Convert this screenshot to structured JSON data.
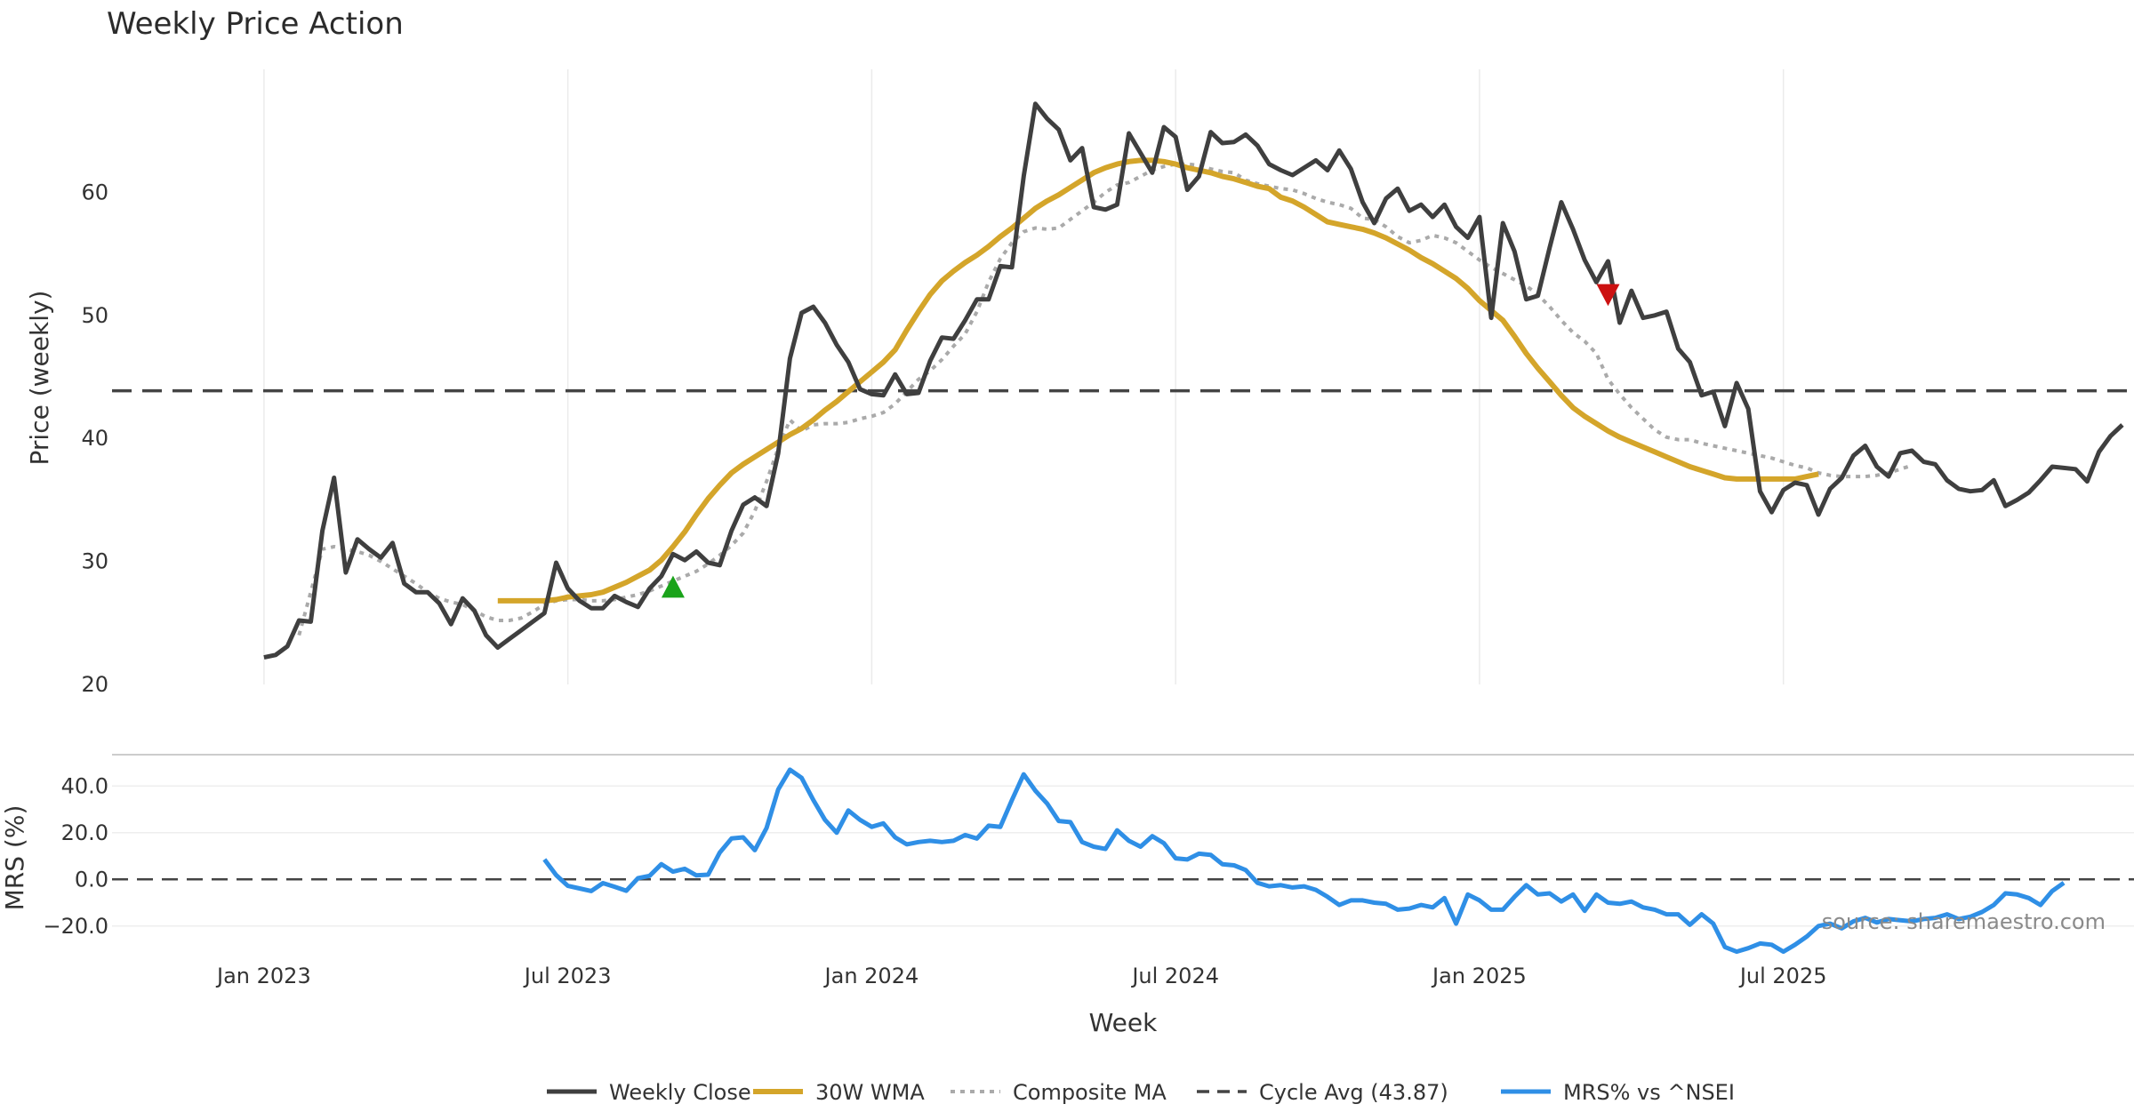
{
  "chart_data": {
    "type": "line",
    "title": "Weekly Price Action",
    "xlabel": "Week",
    "source": "source: sharemaestro.com",
    "colors": {
      "close": "#3f3f3f",
      "wma": "#d4a52a",
      "composite": "#aaaaaa",
      "cycle": "#444444",
      "mrs": "#2f8fe6",
      "buy_marker": "#1aa31a",
      "sell_marker": "#cc1111"
    },
    "x_range_weeks": [
      -13,
      160
    ],
    "price_panel": {
      "ylabel": "Price (weekly)",
      "ylim": [
        20,
        70
      ],
      "yticks": [
        20,
        30,
        40,
        50,
        60
      ],
      "cycle_avg": 43.87,
      "weekly_close": [
        22.2,
        22.4,
        23.1,
        25.2,
        25.1,
        32.5,
        36.8,
        29.1,
        31.8,
        31.0,
        30.3,
        31.5,
        28.2,
        27.5,
        27.5,
        26.6,
        24.9,
        27.0,
        26.0,
        24.0,
        23.0,
        23.7,
        24.4,
        25.1,
        25.8,
        29.9,
        27.8,
        26.8,
        26.2,
        26.2,
        27.2,
        26.7,
        26.3,
        27.8,
        28.8,
        30.6,
        30.1,
        30.8,
        29.9,
        29.7,
        32.5,
        34.6,
        35.2,
        34.5,
        38.8,
        46.5,
        50.2,
        50.7,
        49.4,
        47.6,
        46.2,
        44.0,
        43.6,
        43.5,
        45.2,
        43.6,
        43.7,
        46.3,
        48.2,
        48.1,
        49.6,
        51.3,
        51.3,
        54.0,
        53.9,
        61.3,
        67.2,
        66.0,
        65.1,
        62.6,
        63.6,
        58.8,
        58.6,
        59.0,
        64.8,
        63.2,
        61.6,
        65.3,
        64.5,
        60.2,
        61.3,
        64.9,
        64.0,
        64.1,
        64.7,
        63.8,
        62.3,
        61.8,
        61.4,
        62.0,
        62.6,
        61.8,
        63.4,
        61.9,
        59.2,
        57.5,
        59.5,
        60.3,
        58.5,
        59.0,
        58.0,
        59.0,
        57.2,
        56.3,
        58.0,
        49.8,
        57.5,
        55.2,
        51.3,
        51.6,
        55.5,
        59.2,
        57.0,
        54.5,
        52.7,
        54.4,
        49.4,
        52.0,
        49.8,
        50.0,
        50.3,
        47.3,
        46.2,
        43.5,
        43.8,
        41.0,
        44.5,
        42.4,
        35.7,
        34.0,
        35.8,
        36.4,
        36.2,
        33.8,
        35.9,
        36.8,
        38.6,
        39.4,
        37.7,
        36.9,
        38.8,
        39.0,
        38.1,
        37.9,
        36.6,
        35.9,
        35.7,
        35.8,
        36.6,
        34.5,
        35.0,
        35.6,
        36.6,
        37.7,
        37.6,
        37.5,
        36.5,
        38.9,
        40.2,
        41.1
      ],
      "wma_30w": {
        "start_week": 20,
        "values": [
          26.8,
          26.8,
          26.8,
          26.8,
          26.8,
          26.9,
          27.1,
          27.2,
          27.3,
          27.5,
          27.9,
          28.3,
          28.8,
          29.3,
          30.1,
          31.2,
          32.4,
          33.8,
          35.1,
          36.2,
          37.2,
          37.9,
          38.5,
          39.1,
          39.7,
          40.3,
          40.8,
          41.5,
          42.3,
          43.0,
          43.8,
          44.6,
          45.4,
          46.2,
          47.2,
          48.8,
          50.3,
          51.7,
          52.8,
          53.6,
          54.3,
          54.9,
          55.6,
          56.4,
          57.1,
          57.9,
          58.7,
          59.3,
          59.8,
          60.4,
          61.0,
          61.6,
          62.0,
          62.3,
          62.5,
          62.6,
          62.6,
          62.5,
          62.3,
          62.0,
          61.8,
          61.6,
          61.3,
          61.1,
          60.8,
          60.5,
          60.3,
          59.6,
          59.3,
          58.8,
          58.2,
          57.6,
          57.4,
          57.2,
          57.0,
          56.7,
          56.3,
          55.8,
          55.3,
          54.7,
          54.2,
          53.6,
          53.0,
          52.2,
          51.2,
          50.4,
          49.6,
          48.3,
          46.9,
          45.7,
          44.6,
          43.5,
          42.5,
          41.8,
          41.2,
          40.6,
          40.1,
          39.7,
          39.3,
          38.9,
          38.5,
          38.1,
          37.7,
          37.4,
          37.1,
          36.8,
          36.7,
          36.7,
          36.7,
          36.7,
          36.7,
          36.7,
          36.9,
          37.1
        ]
      },
      "composite_ma": {
        "start_week": 3,
        "values": [
          24.0,
          27.5,
          31.0,
          31.2,
          31.0,
          30.8,
          30.5,
          30.0,
          29.4,
          28.8,
          28.2,
          27.5,
          27.0,
          26.7,
          26.5,
          26.0,
          25.5,
          25.2,
          25.2,
          25.4,
          25.9,
          26.5,
          26.8,
          26.9,
          26.9,
          26.8,
          26.8,
          26.9,
          27.1,
          27.3,
          27.6,
          28.0,
          28.4,
          28.8,
          29.2,
          29.8,
          30.5,
          31.3,
          32.3,
          34.1,
          36.5,
          39.2,
          41.5,
          40.6,
          41.1,
          41.2,
          41.2,
          41.3,
          41.6,
          41.8,
          42.1,
          42.8,
          43.8,
          44.8,
          45.5,
          46.4,
          47.5,
          48.5,
          50.3,
          52.7,
          54.6,
          55.9,
          56.8,
          57.1,
          57.0,
          57.1,
          57.8,
          58.5,
          59.2,
          60.0,
          60.6,
          60.8,
          61.3,
          61.8,
          62.1,
          62.3,
          62.3,
          62.2,
          61.9,
          61.7,
          61.6,
          61.0,
          60.7,
          60.5,
          60.3,
          60.2,
          59.9,
          59.5,
          59.2,
          59.0,
          58.7,
          57.9,
          57.8,
          57.2,
          56.4,
          55.9,
          56.1,
          56.5,
          56.3,
          55.9,
          55.2,
          54.5,
          53.9,
          53.4,
          52.9,
          52.4,
          51.7,
          50.7,
          49.6,
          48.6,
          47.9,
          46.9,
          44.8,
          43.6,
          42.5,
          41.6,
          40.7,
          40.1,
          39.9,
          39.9,
          39.6,
          39.4,
          39.2,
          39.0,
          38.8,
          38.6,
          38.4,
          38.1,
          37.8,
          37.6,
          37.2,
          37.0,
          36.9,
          36.9,
          36.9,
          37.0,
          37.2,
          37.5,
          37.8
        ]
      },
      "markers": [
        {
          "type": "buy",
          "week": 35,
          "value": 27.9
        },
        {
          "type": "sell",
          "week": 115,
          "value": 51.7
        }
      ]
    },
    "mrs_panel": {
      "ylabel": "MRS (%)",
      "ylim": [
        -30,
        50
      ],
      "yticks": [
        -20,
        0,
        20,
        40
      ],
      "ytick_labels": [
        "−20.0",
        "0.0",
        "20.0",
        "40.0"
      ],
      "reference": 0,
      "mrs_vs_nsei": {
        "start_week": 24,
        "values": [
          8.5,
          1.8,
          -2.8,
          -3.9,
          -5.0,
          -1.6,
          -3.2,
          -4.9,
          0.5,
          1.5,
          6.5,
          3.3,
          4.5,
          1.7,
          2.0,
          11.5,
          17.5,
          18.0,
          12.5,
          22.0,
          38.5,
          47.0,
          43.5,
          34.0,
          25.5,
          20.0,
          29.5,
          25.5,
          22.5,
          24.0,
          18.0,
          15.0,
          16.0,
          16.5,
          16.0,
          16.5,
          19.0,
          17.5,
          23.0,
          22.5,
          34.0,
          45.0,
          38.0,
          32.5,
          25.0,
          24.5,
          16.0,
          14.0,
          13.0,
          21.0,
          16.5,
          14.0,
          18.5,
          15.5,
          9.0,
          8.5,
          11.0,
          10.5,
          6.5,
          6.0,
          4.0,
          -1.5,
          -3.0,
          -2.5,
          -3.5,
          -3.0,
          -4.5,
          -7.5,
          -11.0,
          -9.0,
          -9.0,
          -10.0,
          -10.5,
          -13.0,
          -12.5,
          -11.0,
          -12.0,
          -8.0,
          -19.0,
          -6.5,
          -9.0,
          -13.0,
          -13.0,
          -7.5,
          -2.5,
          -6.5,
          -6.0,
          -9.5,
          -6.5,
          -13.5,
          -6.5,
          -10.0,
          -10.5,
          -9.5,
          -12.0,
          -13.0,
          -15.0,
          -15.0,
          -19.5,
          -15.0,
          -19.0,
          -29.0,
          -31.0,
          -29.5,
          -27.5,
          -28.0,
          -31.0,
          -28.0,
          -24.5,
          -20.0,
          -19.0,
          -21.0,
          -18.0,
          -16.5,
          -18.5,
          -17.0,
          -17.5,
          -18.0,
          -17.0,
          -16.5,
          -15.0,
          -17.0,
          -16.0,
          -14.0,
          -11.0,
          -6.0,
          -6.5,
          -8.0,
          -11.0,
          -5.0,
          -1.5
        ]
      }
    },
    "x_ticks": [
      {
        "week": 0,
        "label": "Jan 2023"
      },
      {
        "week": 26,
        "label": "Jul 2023"
      },
      {
        "week": 52,
        "label": "Jan 2024"
      },
      {
        "week": 78,
        "label": "Jul 2024"
      },
      {
        "week": 104,
        "label": "Jan 2025"
      },
      {
        "week": 130,
        "label": "Jul 2025"
      }
    ],
    "legend": [
      {
        "key": "close",
        "label": "Weekly Close",
        "style": "solid"
      },
      {
        "key": "wma",
        "label": "30W WMA",
        "style": "solid"
      },
      {
        "key": "composite",
        "label": "Composite MA",
        "style": "dotted"
      },
      {
        "key": "cycle",
        "label": "Cycle Avg (43.87)",
        "style": "dashed"
      },
      {
        "key": "mrs",
        "label": "MRS% vs ^NSEI",
        "style": "solid"
      }
    ]
  }
}
